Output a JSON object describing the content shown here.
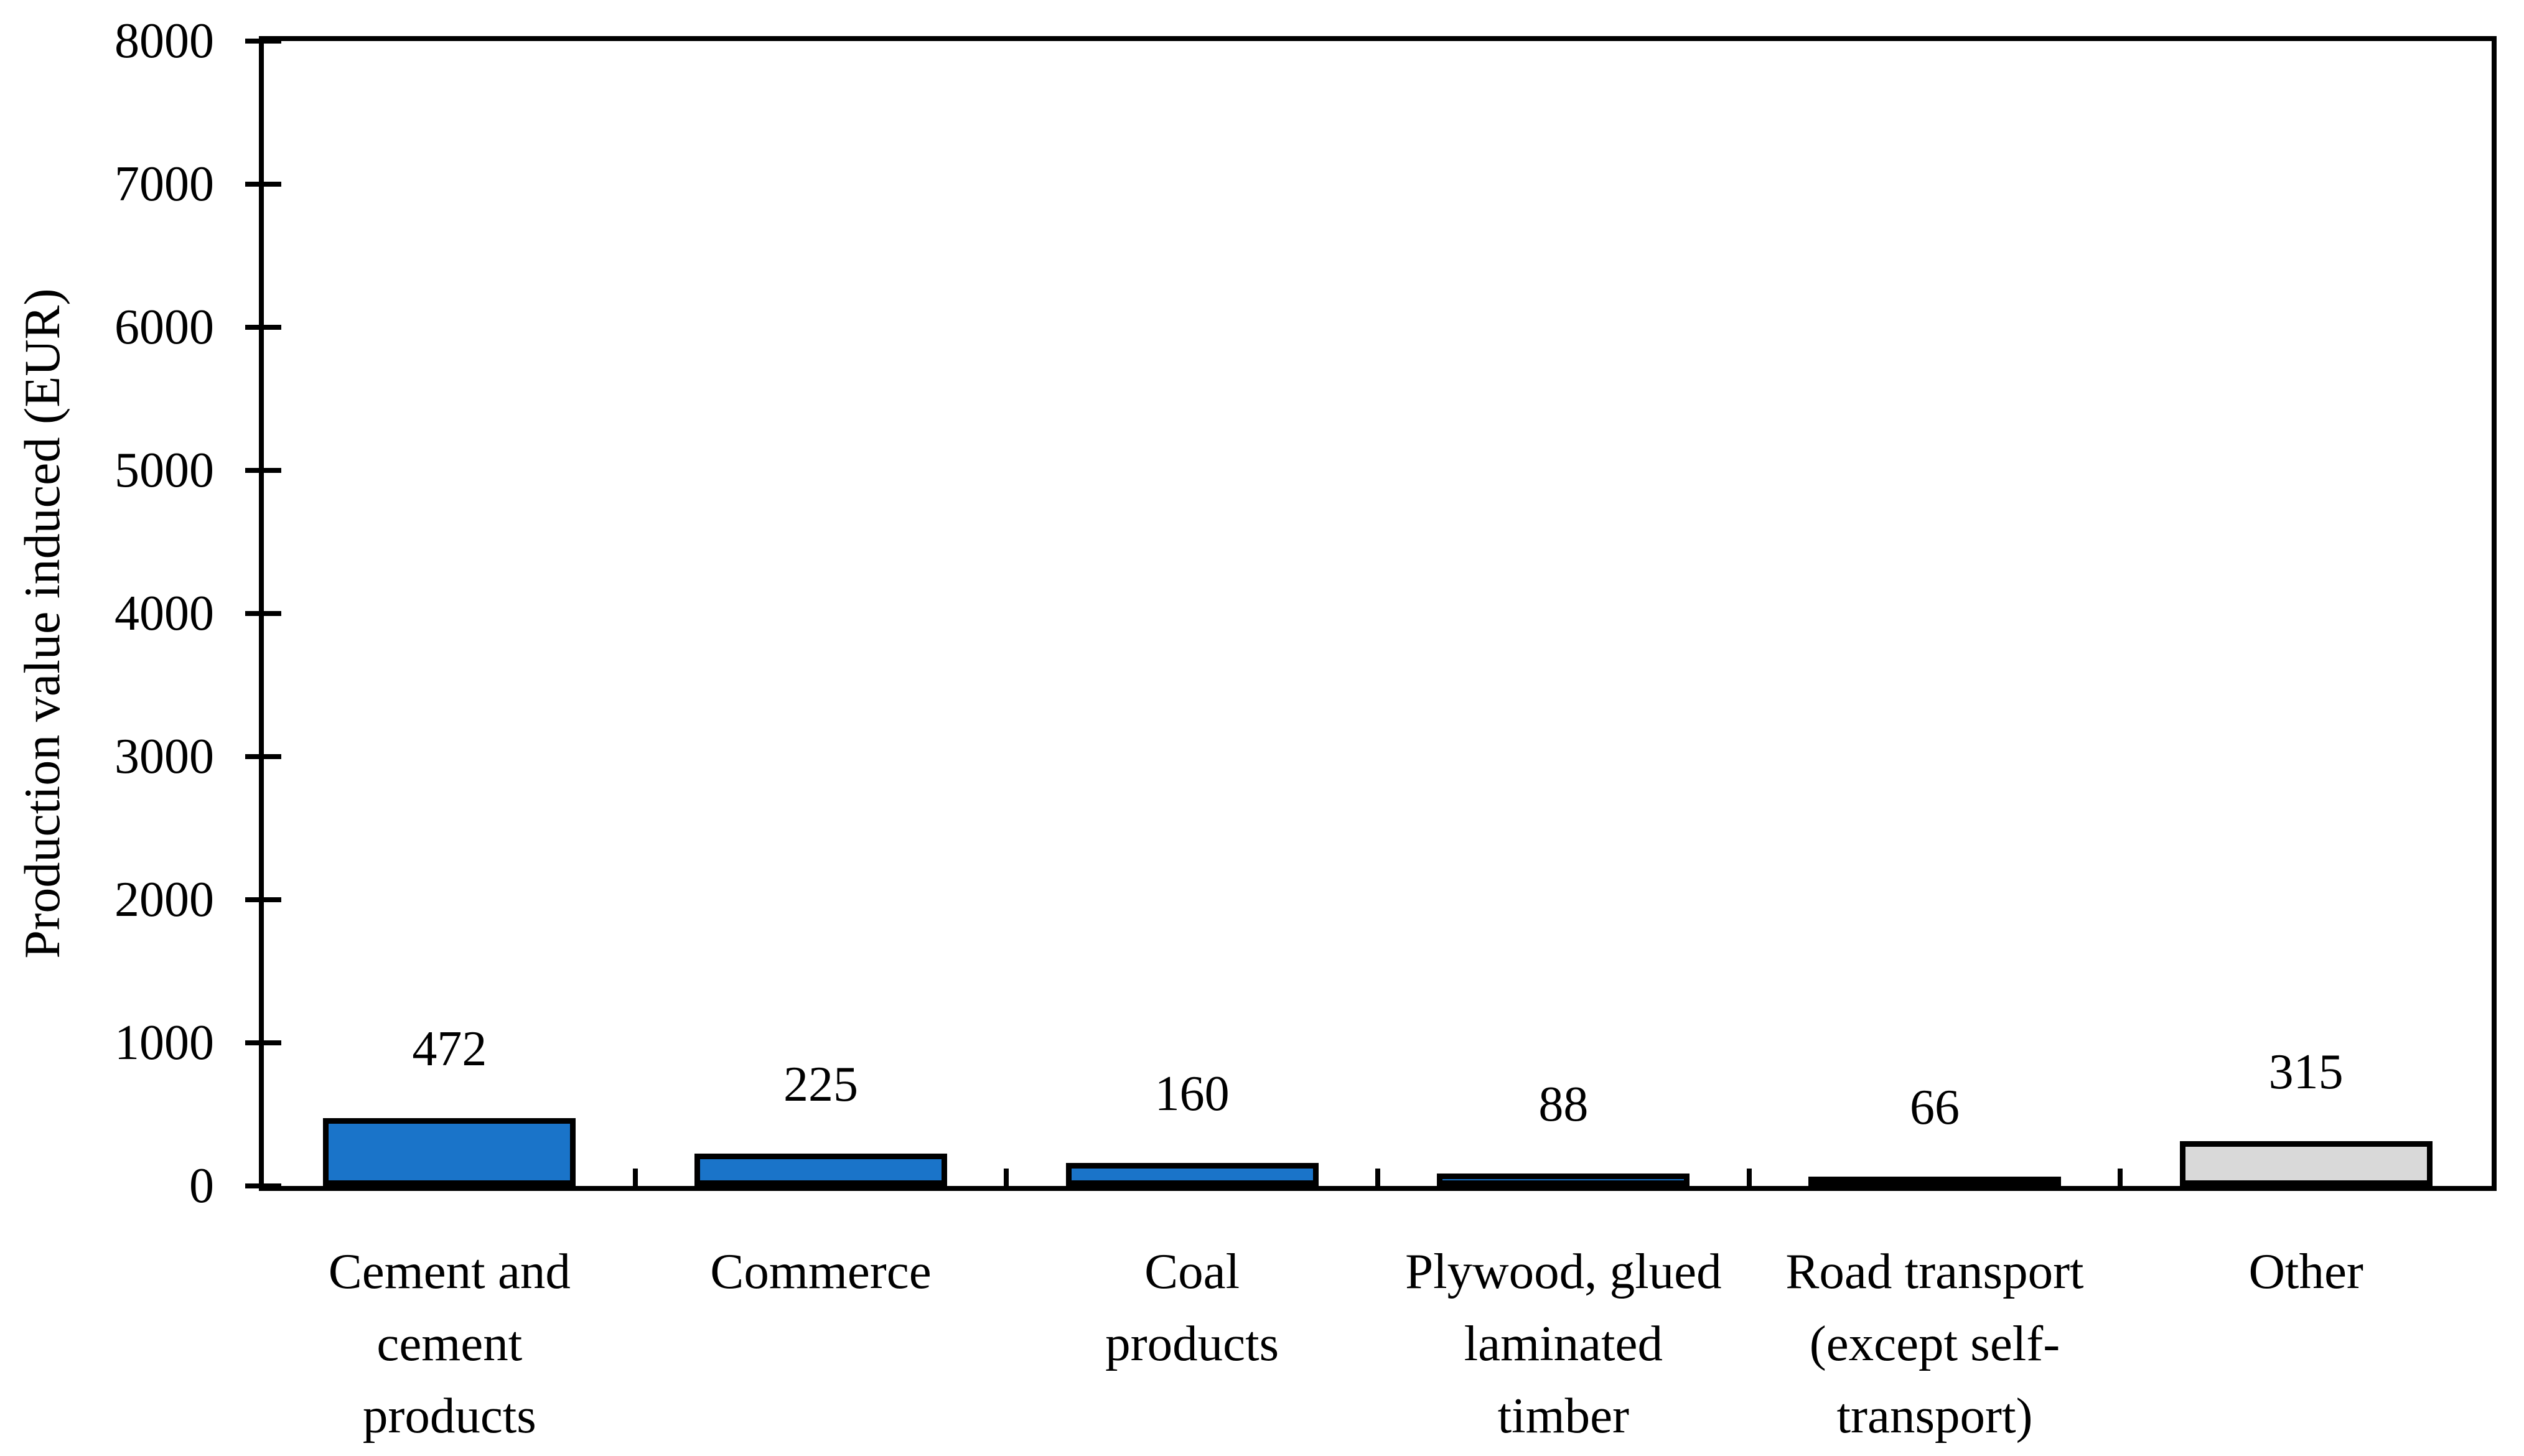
{
  "chart_data": {
    "type": "bar",
    "title": "",
    "ylabel": "Production value induced (EUR)",
    "xlabel": "",
    "ylim": [
      0,
      8000
    ],
    "yticks": [
      0,
      1000,
      2000,
      3000,
      4000,
      5000,
      6000,
      7000,
      8000
    ],
    "categories": [
      "Cement and\ncement\nproducts",
      "Commerce",
      "Coal\nproducts",
      "Plywood, glued\nlaminated\ntimber",
      "Road transport\n(except self-\ntransport)",
      "Other"
    ],
    "values": [
      472,
      225,
      160,
      88,
      66,
      315
    ],
    "data_labels": [
      "472",
      "225",
      "160",
      "88",
      "66",
      "315"
    ],
    "bar_fill_colors": [
      "#1A74C9",
      "#1A74C9",
      "#1A74C9",
      "#1A74C9",
      "#1A74C9",
      "#D9D9D9"
    ],
    "bar_border_color": "#000000",
    "axis_color": "#000000",
    "grid": false,
    "legend_position": "none",
    "plot_border": true
  }
}
